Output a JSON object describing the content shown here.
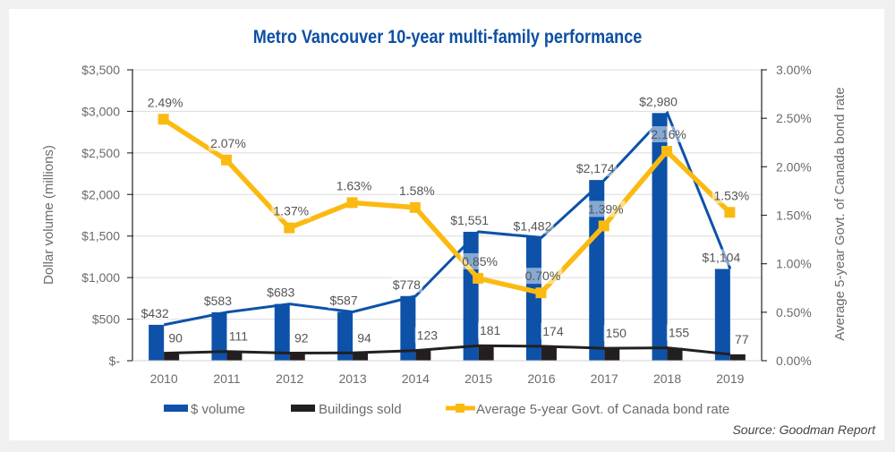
{
  "chart_data": {
    "type": "bar",
    "title": "Metro Vancouver 10-year multi-family performance",
    "categories": [
      "2010",
      "2011",
      "2012",
      "2013",
      "2014",
      "2015",
      "2016",
      "2017",
      "2018",
      "2019"
    ],
    "series": [
      {
        "name": "$ volume",
        "kind": "bar",
        "axis": "left",
        "color": "#0d52a8",
        "values": [
          432,
          583,
          683,
          587,
          778,
          1551,
          1482,
          2174,
          2980,
          1104
        ],
        "labels": [
          "$432",
          "$583",
          "$683",
          "$587",
          "$778",
          "$1,551",
          "$1,482",
          "$2,174",
          "$2,980",
          "$1,104"
        ]
      },
      {
        "name": "Buildings sold",
        "kind": "bar",
        "axis": "left",
        "color": "#231f20",
        "values": [
          90,
          111,
          92,
          94,
          123,
          181,
          174,
          150,
          155,
          77
        ],
        "labels": [
          "90",
          "111",
          "92",
          "94",
          "123",
          "181",
          "174",
          "150",
          "155",
          "77"
        ]
      },
      {
        "name": "Average 5-year Govt. of Canada bond rate",
        "kind": "line",
        "axis": "right",
        "color": "#fbba11",
        "values": [
          2.49,
          2.07,
          1.37,
          1.63,
          1.58,
          0.85,
          0.7,
          1.39,
          2.16,
          1.53
        ],
        "labels": [
          "2.49%",
          "2.07%",
          "1.37%",
          "1.63%",
          "1.58%",
          "0.85%",
          "0.70%",
          "1.39%",
          "2.16%",
          "1.53%"
        ]
      }
    ],
    "ylabel": "Dollar volume (millions)",
    "y2label": "Average 5-year Govt. of Canada bond rate",
    "ylim": [
      0,
      3500
    ],
    "y2lim": [
      0,
      3.0
    ],
    "yticks": [
      0,
      500,
      1000,
      1500,
      2000,
      2500,
      3000,
      3500
    ],
    "ytick_labels": [
      "$-",
      "$500",
      "$1,000",
      "$1,500",
      "$2,000",
      "$2,500",
      "$3,000",
      "$3,500"
    ],
    "y2ticks": [
      0,
      0.5,
      1.0,
      1.5,
      2.0,
      2.5,
      3.0
    ],
    "y2tick_labels": [
      "0.00%",
      "0.50%",
      "1.00%",
      "1.50%",
      "2.00%",
      "2.50%",
      "3.00%"
    ],
    "grid": true,
    "legend": "bottom",
    "legend_entries": [
      "$ volume",
      "Buildings sold",
      "Average 5-year Govt. of Canada bond rate"
    ],
    "source": "Source: Goodman Report"
  }
}
